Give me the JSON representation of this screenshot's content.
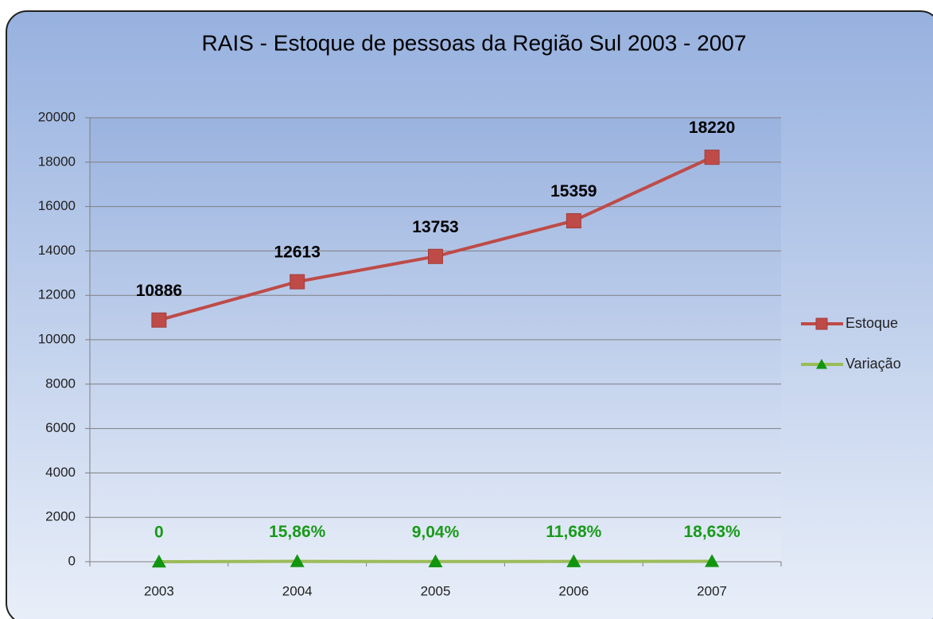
{
  "chart_data": {
    "type": "line",
    "title": "RAIS - Estoque de pessoas da Região Sul 2003 - 2007",
    "categories": [
      "2003",
      "2004",
      "2005",
      "2006",
      "2007"
    ],
    "series": [
      {
        "name": "Estoque",
        "color": "#be4b48",
        "marker": "square",
        "marker_color": "#be4b48",
        "values": [
          10886,
          12613,
          13753,
          15359,
          18220
        ]
      },
      {
        "name": "Variação",
        "color": "#9bbb59",
        "marker": "triangle",
        "marker_color": "#12950f",
        "values": [
          0,
          15.86,
          9.04,
          11.68,
          18.63
        ],
        "value_labels": [
          "0",
          "15,86%",
          "9,04%",
          "11,68%",
          "18,63%"
        ],
        "label_color": "#1a9a1a"
      }
    ],
    "ylim": [
      0,
      20000
    ],
    "yticks": [
      0,
      2000,
      4000,
      6000,
      8000,
      10000,
      12000,
      14000,
      16000,
      18000,
      20000
    ],
    "grid": true,
    "legend": "right"
  }
}
